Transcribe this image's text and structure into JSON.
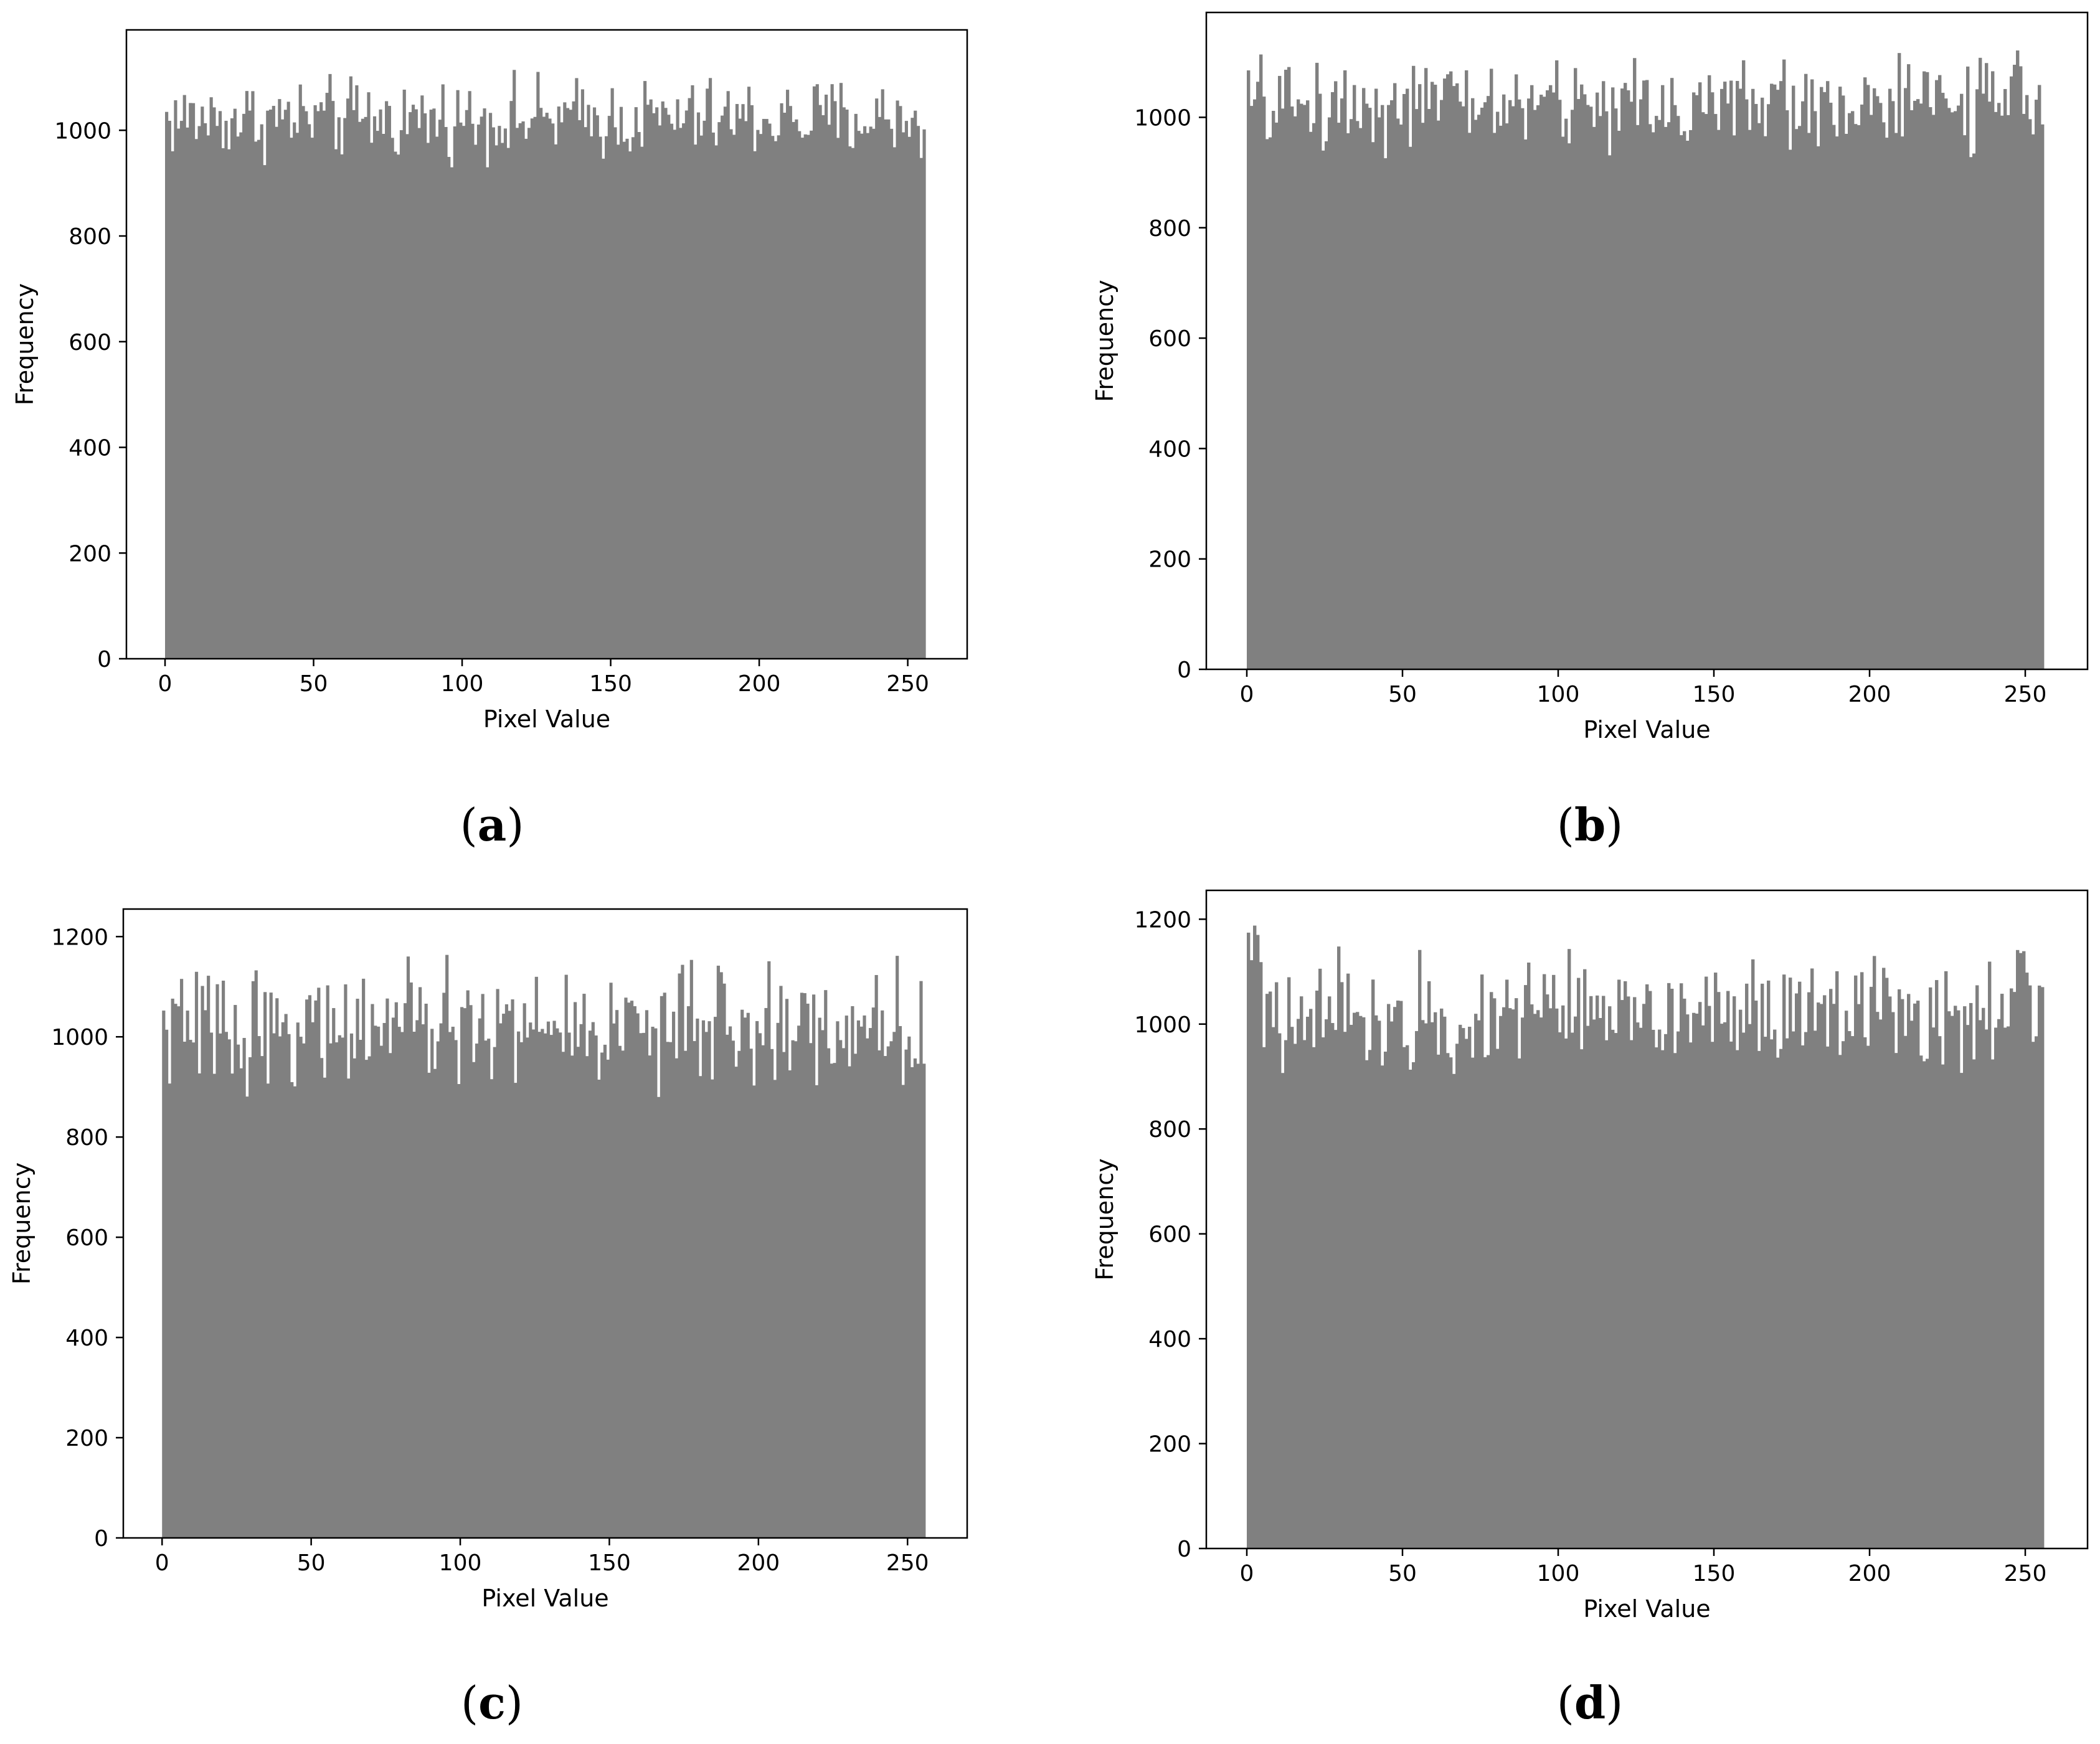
{
  "colors": {
    "bar": "#808080",
    "axis": "#000000",
    "background": "#ffffff"
  },
  "chart_data": [
    {
      "type": "bar",
      "panel_label": "(a)",
      "xlabel": "Pixel Value",
      "ylabel": "Frequency",
      "xlim": [
        -13,
        270
      ],
      "ylim": [
        0,
        1190
      ],
      "xticks": [
        0,
        50,
        100,
        150,
        200,
        250
      ],
      "yticks": [
        0,
        200,
        400,
        600,
        800,
        1000
      ],
      "bins": 256,
      "bin_range": [
        0,
        256
      ],
      "mean_count": 1022,
      "count_range": [
        930,
        1135
      ],
      "grid": false,
      "legend": "none"
    },
    {
      "type": "bar",
      "panel_label": "(b)",
      "xlabel": "Pixel Value",
      "ylabel": "Frequency",
      "xlim": [
        -13,
        270
      ],
      "ylim": [
        0,
        1190
      ],
      "xticks": [
        0,
        50,
        100,
        150,
        200,
        250
      ],
      "yticks": [
        0,
        200,
        400,
        600,
        800,
        1000
      ],
      "bins": 256,
      "bin_range": [
        0,
        256
      ],
      "mean_count": 1025,
      "count_range": [
        905,
        1130
      ],
      "grid": false,
      "legend": "none"
    },
    {
      "type": "bar",
      "panel_label": "(c)",
      "xlabel": "Pixel Value",
      "ylabel": "Frequency",
      "xlim": [
        -13,
        270
      ],
      "ylim": [
        0,
        1255
      ],
      "xticks": [
        0,
        50,
        100,
        150,
        200,
        250
      ],
      "yticks": [
        0,
        200,
        400,
        600,
        800,
        1000,
        1200
      ],
      "bins": 256,
      "bin_range": [
        0,
        256
      ],
      "mean_count": 1020,
      "count_range": [
        880,
        1190
      ],
      "grid": false,
      "legend": "none"
    },
    {
      "type": "bar",
      "panel_label": "(d)",
      "xlabel": "Pixel Value",
      "ylabel": "Frequency",
      "xlim": [
        -13,
        270
      ],
      "ylim": [
        0,
        1255
      ],
      "xticks": [
        0,
        50,
        100,
        150,
        200,
        250
      ],
      "yticks": [
        0,
        200,
        400,
        600,
        800,
        1000,
        1200
      ],
      "bins": 256,
      "bin_range": [
        0,
        256
      ],
      "mean_count": 1025,
      "count_range": [
        905,
        1200
      ],
      "grid": false,
      "legend": "none"
    }
  ]
}
